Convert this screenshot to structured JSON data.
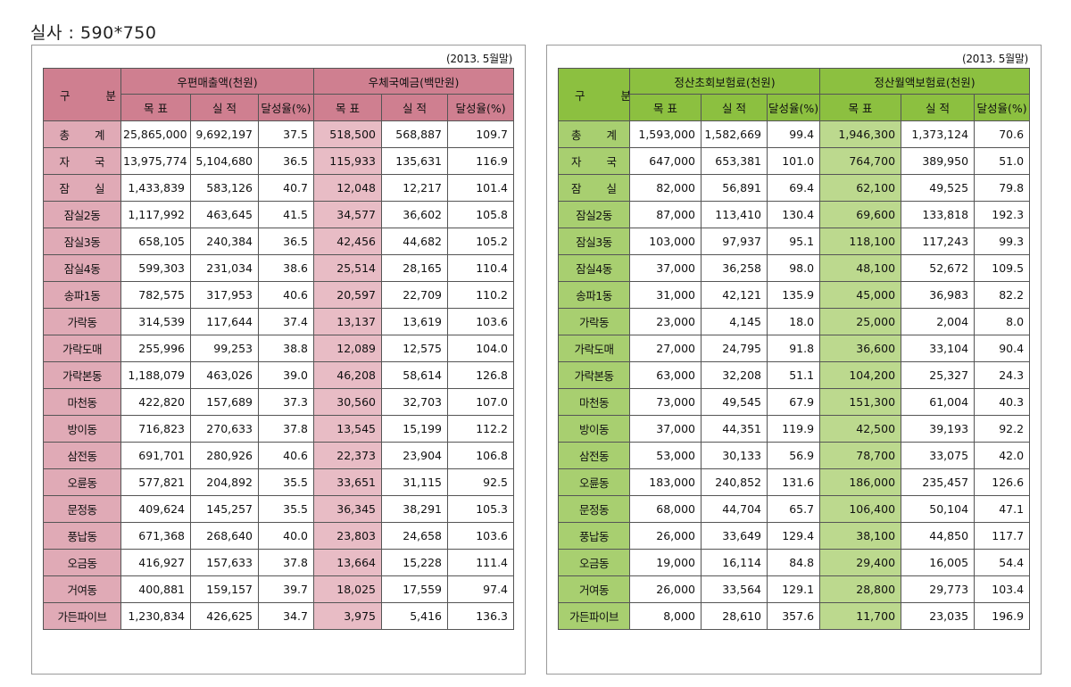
{
  "caption": "실사 : 590*750",
  "left": {
    "date_note": "(2013. 5월말)",
    "corner": "구 분",
    "group1": "우편매출액(천원)",
    "group2": "우체국예금(백만원)",
    "sub": [
      "목 표",
      "실 적",
      "달성율(%)",
      "목 표",
      "실 적",
      "달성율(%)"
    ],
    "rows": [
      {
        "label": "총 계",
        "spaced": true,
        "v": [
          "25,865,000",
          "9,692,197",
          "37.5",
          "518,500",
          "568,887",
          "109.7"
        ]
      },
      {
        "label": "자 국",
        "spaced": true,
        "v": [
          "13,975,774",
          "5,104,680",
          "36.5",
          "115,933",
          "135,631",
          "116.9"
        ]
      },
      {
        "label": "잠 실",
        "spaced": true,
        "v": [
          "1,433,839",
          "583,126",
          "40.7",
          "12,048",
          "12,217",
          "101.4"
        ]
      },
      {
        "label": "잠실2동",
        "v": [
          "1,117,992",
          "463,645",
          "41.5",
          "34,577",
          "36,602",
          "105.8"
        ]
      },
      {
        "label": "잠실3동",
        "v": [
          "658,105",
          "240,384",
          "36.5",
          "42,456",
          "44,682",
          "105.2"
        ]
      },
      {
        "label": "잠실4동",
        "v": [
          "599,303",
          "231,034",
          "38.6",
          "25,514",
          "28,165",
          "110.4"
        ]
      },
      {
        "label": "송파1동",
        "v": [
          "782,575",
          "317,953",
          "40.6",
          "20,597",
          "22,709",
          "110.2"
        ]
      },
      {
        "label": "가락동",
        "v": [
          "314,539",
          "117,644",
          "37.4",
          "13,137",
          "13,619",
          "103.6"
        ]
      },
      {
        "label": "가락도매",
        "v": [
          "255,996",
          "99,253",
          "38.8",
          "12,089",
          "12,575",
          "104.0"
        ]
      },
      {
        "label": "가락본동",
        "v": [
          "1,188,079",
          "463,026",
          "39.0",
          "46,208",
          "58,614",
          "126.8"
        ]
      },
      {
        "label": "마천동",
        "v": [
          "422,820",
          "157,689",
          "37.3",
          "30,560",
          "32,703",
          "107.0"
        ]
      },
      {
        "label": "방이동",
        "v": [
          "716,823",
          "270,633",
          "37.8",
          "13,545",
          "15,199",
          "112.2"
        ]
      },
      {
        "label": "삼전동",
        "v": [
          "691,701",
          "280,926",
          "40.6",
          "22,373",
          "23,904",
          "106.8"
        ]
      },
      {
        "label": "오륜동",
        "v": [
          "577,821",
          "204,892",
          "35.5",
          "33,651",
          "31,115",
          "92.5"
        ]
      },
      {
        "label": "문정동",
        "v": [
          "409,624",
          "145,257",
          "35.5",
          "36,345",
          "38,291",
          "105.3"
        ]
      },
      {
        "label": "풍납동",
        "v": [
          "671,368",
          "268,640",
          "40.0",
          "23,803",
          "24,658",
          "103.6"
        ]
      },
      {
        "label": "오금동",
        "v": [
          "416,927",
          "157,633",
          "37.8",
          "13,664",
          "15,228",
          "111.4"
        ]
      },
      {
        "label": "거여동",
        "v": [
          "400,881",
          "159,157",
          "39.7",
          "18,025",
          "17,559",
          "97.4"
        ]
      },
      {
        "label": "가든파이브",
        "v": [
          "1,230,834",
          "426,625",
          "34.7",
          "3,975",
          "5,416",
          "136.3"
        ]
      }
    ]
  },
  "right": {
    "date_note": "(2013. 5월말)",
    "corner": "구 분",
    "group1": "정산초회보험료(천원)",
    "group2": "정산월액보험료(천원)",
    "sub": [
      "목 표",
      "실 적",
      "달성율(%)",
      "목 표",
      "실 적",
      "달성율(%)"
    ],
    "rows": [
      {
        "label": "총 계",
        "spaced": true,
        "v": [
          "1,593,000",
          "1,582,669",
          "99.4",
          "1,946,300",
          "1,373,124",
          "70.6"
        ]
      },
      {
        "label": "자 국",
        "spaced": true,
        "v": [
          "647,000",
          "653,381",
          "101.0",
          "764,700",
          "389,950",
          "51.0"
        ]
      },
      {
        "label": "잠 실",
        "spaced": true,
        "v": [
          "82,000",
          "56,891",
          "69.4",
          "62,100",
          "49,525",
          "79.8"
        ]
      },
      {
        "label": "잠실2동",
        "v": [
          "87,000",
          "113,410",
          "130.4",
          "69,600",
          "133,818",
          "192.3"
        ]
      },
      {
        "label": "잠실3동",
        "v": [
          "103,000",
          "97,937",
          "95.1",
          "118,100",
          "117,243",
          "99.3"
        ]
      },
      {
        "label": "잠실4동",
        "v": [
          "37,000",
          "36,258",
          "98.0",
          "48,100",
          "52,672",
          "109.5"
        ]
      },
      {
        "label": "송파1동",
        "v": [
          "31,000",
          "42,121",
          "135.9",
          "45,000",
          "36,983",
          "82.2"
        ]
      },
      {
        "label": "가락동",
        "v": [
          "23,000",
          "4,145",
          "18.0",
          "25,000",
          "2,004",
          "8.0"
        ]
      },
      {
        "label": "가락도매",
        "v": [
          "27,000",
          "24,795",
          "91.8",
          "36,600",
          "33,104",
          "90.4"
        ]
      },
      {
        "label": "가락본동",
        "v": [
          "63,000",
          "32,208",
          "51.1",
          "104,200",
          "25,327",
          "24.3"
        ]
      },
      {
        "label": "마천동",
        "v": [
          "73,000",
          "49,545",
          "67.9",
          "151,300",
          "61,004",
          "40.3"
        ]
      },
      {
        "label": "방이동",
        "v": [
          "37,000",
          "44,351",
          "119.9",
          "42,500",
          "39,193",
          "92.2"
        ]
      },
      {
        "label": "삼전동",
        "v": [
          "53,000",
          "30,133",
          "56.9",
          "78,700",
          "33,075",
          "42.0"
        ]
      },
      {
        "label": "오륜동",
        "v": [
          "183,000",
          "240,852",
          "131.6",
          "186,000",
          "235,457",
          "126.6"
        ]
      },
      {
        "label": "문정동",
        "v": [
          "68,000",
          "44,704",
          "65.7",
          "106,400",
          "50,104",
          "47.1"
        ]
      },
      {
        "label": "풍납동",
        "v": [
          "26,000",
          "33,649",
          "129.4",
          "38,100",
          "44,850",
          "117.7"
        ]
      },
      {
        "label": "오금동",
        "v": [
          "19,000",
          "16,114",
          "84.8",
          "29,400",
          "16,005",
          "54.4"
        ]
      },
      {
        "label": "거여동",
        "v": [
          "26,000",
          "33,564",
          "129.1",
          "28,800",
          "29,773",
          "103.4"
        ]
      },
      {
        "label": "가든파이브",
        "v": [
          "8,000",
          "28,610",
          "357.6",
          "11,700",
          "23,035",
          "196.9"
        ]
      }
    ]
  },
  "theme": {
    "left_header": "#cf7f90",
    "left_shade": "#e8bcc5",
    "right_header": "#8cc040",
    "right_shade": "#bcd98e"
  }
}
